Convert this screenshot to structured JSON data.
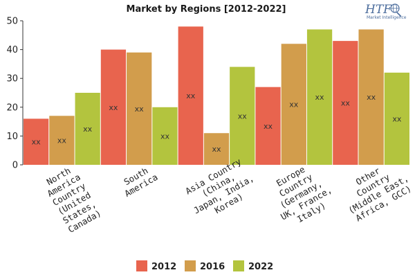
{
  "logo": {
    "brand": "HTF",
    "tagline": "Market Intelligence",
    "icon": "globe-icon"
  },
  "chart_data": {
    "type": "bar",
    "title": "Market by Regions [2012-2022]",
    "xlabel": "",
    "ylabel": "",
    "ylim": [
      0,
      50
    ],
    "yticks": [
      0,
      10,
      20,
      30,
      40,
      50
    ],
    "grid": false,
    "legend": "bottom",
    "categories": [
      [
        "North",
        "America",
        "Country",
        "(United",
        "States,",
        "Canada)"
      ],
      [
        "South",
        "America"
      ],
      [
        "Asia Country",
        "(China,",
        "Japan, India,",
        "Korea)"
      ],
      [
        "Europe",
        "Country",
        "(Germany,",
        "UK, France,",
        "Italy)"
      ],
      [
        "Other",
        "Country",
        "(Middle East,",
        "Africa, GCC)"
      ]
    ],
    "series": [
      {
        "name": "2012",
        "color": "#e8644e",
        "values": [
          16,
          40,
          48,
          27,
          43
        ],
        "labels": [
          "xx",
          "xx",
          "xx",
          "xx",
          "xx"
        ]
      },
      {
        "name": "2016",
        "color": "#d29d4c",
        "values": [
          17,
          39,
          11,
          42,
          47
        ],
        "labels": [
          "xx",
          "xx",
          "xx",
          "xx",
          "xx"
        ]
      },
      {
        "name": "2022",
        "color": "#b3c43e",
        "values": [
          25,
          20,
          34,
          47,
          32
        ],
        "labels": [
          "xx",
          "xx",
          "xx",
          "xx",
          "xx"
        ]
      }
    ]
  }
}
